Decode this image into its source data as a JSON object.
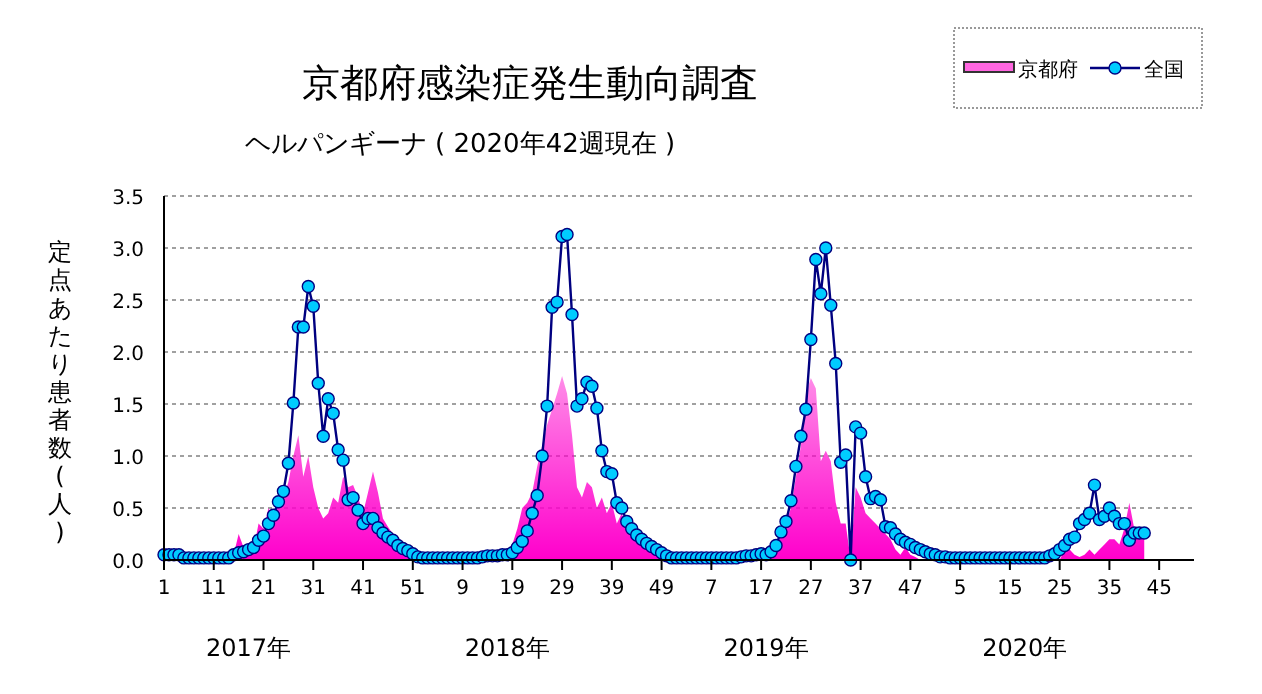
{
  "chart_data": {
    "type": "line",
    "title": "京都府感染症発生動向調査",
    "subtitle": "ヘルパンギーナ ( 2020年42週現在 )",
    "ylabel": "定点あたり患者数(人)",
    "annotations": [
      "2017年",
      "2018年",
      "2019年",
      "2020年"
    ],
    "categories": [
      "1",
      null,
      null,
      null,
      null,
      null,
      null,
      null,
      null,
      null,
      "11",
      null,
      null,
      null,
      null,
      null,
      null,
      null,
      null,
      null,
      "21",
      null,
      null,
      null,
      null,
      null,
      null,
      null,
      null,
      null,
      "31",
      null,
      null,
      null,
      null,
      null,
      null,
      null,
      null,
      null,
      "41",
      null,
      null,
      null,
      null,
      null,
      null,
      null,
      null,
      null,
      "51",
      null,
      null,
      null,
      null,
      null,
      null,
      null,
      null,
      null,
      "9",
      null,
      null,
      null,
      null,
      null,
      null,
      null,
      null,
      null,
      "19",
      null,
      null,
      null,
      null,
      null,
      null,
      null,
      null,
      null,
      "29",
      null,
      null,
      null,
      null,
      null,
      null,
      null,
      null,
      null,
      "39",
      null,
      null,
      null,
      null,
      null,
      null,
      null,
      null,
      null,
      "49",
      null,
      null,
      null,
      null,
      null,
      null,
      null,
      null,
      null,
      "7",
      null,
      null,
      null,
      null,
      null,
      null,
      null,
      null,
      null,
      "17",
      null,
      null,
      null,
      null,
      null,
      null,
      null,
      null,
      null,
      "27",
      null,
      null,
      null,
      null,
      null,
      null,
      null,
      null,
      null,
      "37",
      null,
      null,
      null,
      null,
      null,
      null,
      null,
      null,
      null,
      "47",
      null,
      null,
      null,
      null,
      null,
      null,
      null,
      null,
      null,
      "5",
      null,
      null,
      null,
      null,
      null,
      null,
      null,
      null,
      null,
      "15",
      null,
      null,
      null,
      null,
      null,
      null,
      null,
      null,
      null,
      "25",
      null,
      null,
      null,
      null,
      null,
      null,
      null,
      null,
      null,
      "35",
      null,
      null,
      null,
      null,
      null,
      null,
      null,
      null,
      null,
      "45",
      null,
      null,
      null,
      null,
      null,
      null,
      null
    ],
    "series": [
      {
        "name": "京都府",
        "type": "area",
        "color": "#ff00cc",
        "values": [
          0,
          0,
          0,
          0,
          0,
          0,
          0,
          0,
          0,
          0,
          0,
          0,
          0,
          0,
          0.05,
          0.25,
          0.12,
          0.15,
          0.1,
          0.35,
          0.3,
          0.5,
          0.4,
          0.55,
          0.6,
          0.75,
          1.0,
          1.2,
          0.8,
          1.0,
          0.7,
          0.5,
          0.4,
          0.45,
          0.6,
          0.55,
          0.8,
          0.7,
          0.72,
          0.6,
          0.45,
          0.65,
          0.85,
          0.65,
          0.4,
          0.32,
          0.25,
          0.15,
          0.08,
          0.03,
          0,
          0,
          0,
          0,
          0,
          0,
          0,
          0,
          0,
          0,
          0,
          0,
          0,
          0,
          0,
          0,
          0,
          0,
          0.05,
          0.1,
          0.15,
          0.3,
          0.5,
          0.55,
          0.65,
          0.9,
          1.1,
          1.3,
          1.45,
          1.6,
          1.77,
          1.6,
          1.2,
          0.7,
          0.6,
          0.75,
          0.7,
          0.5,
          0.6,
          0.45,
          0.55,
          0.35,
          0.45,
          0.3,
          0.25,
          0.2,
          0.15,
          0.12,
          0.1,
          0.07,
          0.03,
          0,
          0,
          0,
          0,
          0,
          0,
          0,
          0,
          0,
          0,
          0,
          0,
          0,
          0,
          0,
          0,
          0,
          0,
          0,
          0,
          0,
          0.05,
          0.1,
          0.25,
          0.35,
          0.5,
          0.8,
          1.1,
          1.6,
          1.75,
          1.65,
          0.95,
          1.05,
          0.95,
          0.55,
          0.35,
          0.35,
          0.0,
          0.7,
          0.6,
          0.45,
          0.4,
          0.35,
          0.3,
          0.25,
          0.2,
          0.1,
          0.05,
          0.12,
          0.05,
          0.03,
          0,
          0,
          0,
          0,
          0,
          0,
          0,
          0,
          0,
          0,
          0,
          0,
          0,
          0,
          0,
          0,
          0,
          0,
          0,
          0,
          0,
          0,
          0,
          0,
          0,
          0,
          0,
          0,
          0,
          0.1,
          0.1,
          0.05,
          0.03,
          0.05,
          0.1,
          0.05,
          0.1,
          0.15,
          0.2,
          0.2,
          0.15,
          0.3,
          0.55,
          0.3,
          0.3,
          0.3,
          null,
          null,
          null,
          null,
          null,
          null,
          null,
          null,
          null,
          null
        ]
      },
      {
        "name": "全国",
        "type": "line",
        "color": "#000080",
        "marker": "circle",
        "values": [
          0.05,
          0.05,
          0.05,
          0.05,
          0.02,
          0.02,
          0.02,
          0.02,
          0.02,
          0.02,
          0.02,
          0.02,
          0.02,
          0.02,
          0.05,
          0.07,
          0.08,
          0.1,
          0.12,
          0.19,
          0.23,
          0.35,
          0.43,
          0.56,
          0.66,
          0.93,
          1.51,
          2.24,
          2.24,
          2.63,
          2.44,
          1.7,
          1.19,
          1.55,
          1.41,
          1.06,
          0.96,
          0.58,
          0.6,
          0.48,
          0.35,
          0.4,
          0.4,
          0.31,
          0.26,
          0.22,
          0.19,
          0.14,
          0.11,
          0.09,
          0.06,
          0.03,
          0.02,
          0.02,
          0.02,
          0.02,
          0.02,
          0.02,
          0.02,
          0.02,
          0.02,
          0.02,
          0.02,
          0.02,
          0.03,
          0.04,
          0.04,
          0.04,
          0.05,
          0.05,
          0.07,
          0.12,
          0.18,
          0.28,
          0.45,
          0.62,
          1.0,
          1.48,
          2.43,
          2.48,
          3.11,
          3.13,
          2.36,
          1.48,
          1.55,
          1.71,
          1.67,
          1.46,
          1.05,
          0.85,
          0.83,
          0.55,
          0.5,
          0.37,
          0.3,
          0.24,
          0.2,
          0.16,
          0.13,
          0.1,
          0.07,
          0.04,
          0.02,
          0.02,
          0.02,
          0.02,
          0.02,
          0.02,
          0.02,
          0.02,
          0.02,
          0.02,
          0.02,
          0.02,
          0.02,
          0.02,
          0.03,
          0.04,
          0.04,
          0.05,
          0.06,
          0.05,
          0.08,
          0.14,
          0.27,
          0.37,
          0.57,
          0.9,
          1.19,
          1.45,
          2.12,
          2.89,
          2.56,
          3.0,
          2.45,
          1.89,
          0.94,
          1.01,
          0.0,
          1.28,
          1.22,
          0.8,
          0.59,
          0.61,
          0.58,
          0.32,
          0.31,
          0.25,
          0.2,
          0.17,
          0.15,
          0.12,
          0.1,
          0.08,
          0.06,
          0.05,
          0.03,
          0.03,
          0.02,
          0.02,
          0.02,
          0.02,
          0.02,
          0.02,
          0.02,
          0.02,
          0.02,
          0.02,
          0.02,
          0.02,
          0.02,
          0.02,
          0.02,
          0.02,
          0.02,
          0.02,
          0.02,
          0.02,
          0.04,
          0.06,
          0.1,
          0.14,
          0.2,
          0.22,
          0.35,
          0.39,
          0.45,
          0.72,
          0.39,
          0.42,
          0.5,
          0.42,
          0.35,
          0.35,
          0.19,
          0.26,
          0.26,
          0.26,
          null,
          null,
          null,
          null,
          null,
          null,
          null,
          null,
          null,
          null
        ]
      }
    ],
    "ylim": [
      0,
      3.5
    ],
    "yticks": [
      {
        "value": 0,
        "label": "0.0"
      },
      {
        "value": 0.5,
        "label": "0.5"
      },
      {
        "value": 1,
        "label": "1.0"
      },
      {
        "value": 1.5,
        "label": "1.5"
      },
      {
        "value": 2,
        "label": "2.0"
      },
      {
        "value": 2.5,
        "label": "2.5"
      },
      {
        "value": 3,
        "label": "3.0"
      },
      {
        "value": 3.5,
        "label": "3.5"
      }
    ],
    "grid": "y",
    "legend": "top right"
  }
}
